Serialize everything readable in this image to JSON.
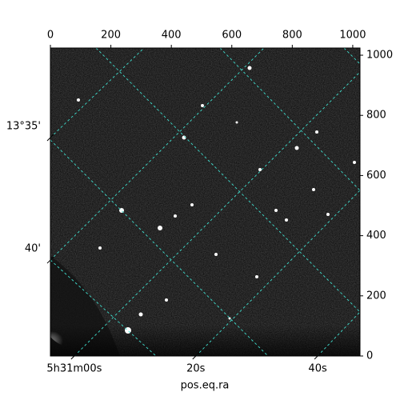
{
  "chart_data": {
    "type": "image",
    "xlabel": "pos.eq.ra",
    "xlim": [
      0,
      1024
    ],
    "ylim": [
      0,
      1024
    ],
    "xticks": [
      0,
      200,
      400,
      600,
      800,
      1000
    ],
    "yticks": [
      0,
      200,
      400,
      600,
      800,
      1000
    ],
    "ra_ticks": [
      {
        "value": 79,
        "label": "5h31m00s"
      },
      {
        "value": 481,
        "label": "20s"
      },
      {
        "value": 884,
        "label": "40s"
      }
    ],
    "dec_ticks": [
      {
        "value": 726,
        "label": "13°35'"
      },
      {
        "value": 319,
        "label": "40'"
      }
    ],
    "grid_color": "#40e0d0"
  }
}
